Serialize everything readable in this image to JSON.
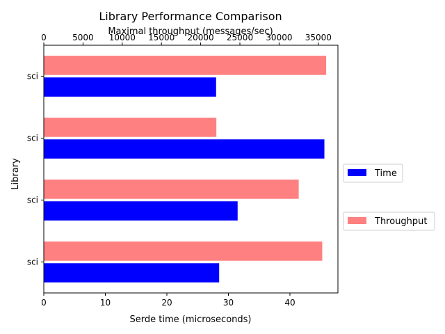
{
  "chart_data": {
    "type": "bar",
    "orientation": "horizontal",
    "title": "Library Performance Comparison",
    "ylabel": "Library",
    "categories": [
      "sci",
      "sci",
      "sci",
      "sci"
    ],
    "axes": {
      "bottom": {
        "label": "Serde time (microseconds)",
        "range": [
          0,
          47.8
        ],
        "ticks": [
          0,
          10,
          20,
          30,
          40
        ]
      },
      "top": {
        "label": "Maximal throughput (messages/sec)",
        "range": [
          0,
          37500
        ],
        "ticks": [
          0,
          5000,
          10000,
          15000,
          20000,
          25000,
          30000,
          35000
        ]
      }
    },
    "series": [
      {
        "name": "Time",
        "axis": "bottom",
        "color": "#0000ff",
        "values": [
          28.0,
          45.6,
          31.5,
          28.5
        ]
      },
      {
        "name": "Throughput",
        "axis": "top",
        "color": "#ff8080",
        "values": [
          36000,
          22000,
          32500,
          35500
        ]
      }
    ],
    "legend": "right",
    "grid": false
  }
}
